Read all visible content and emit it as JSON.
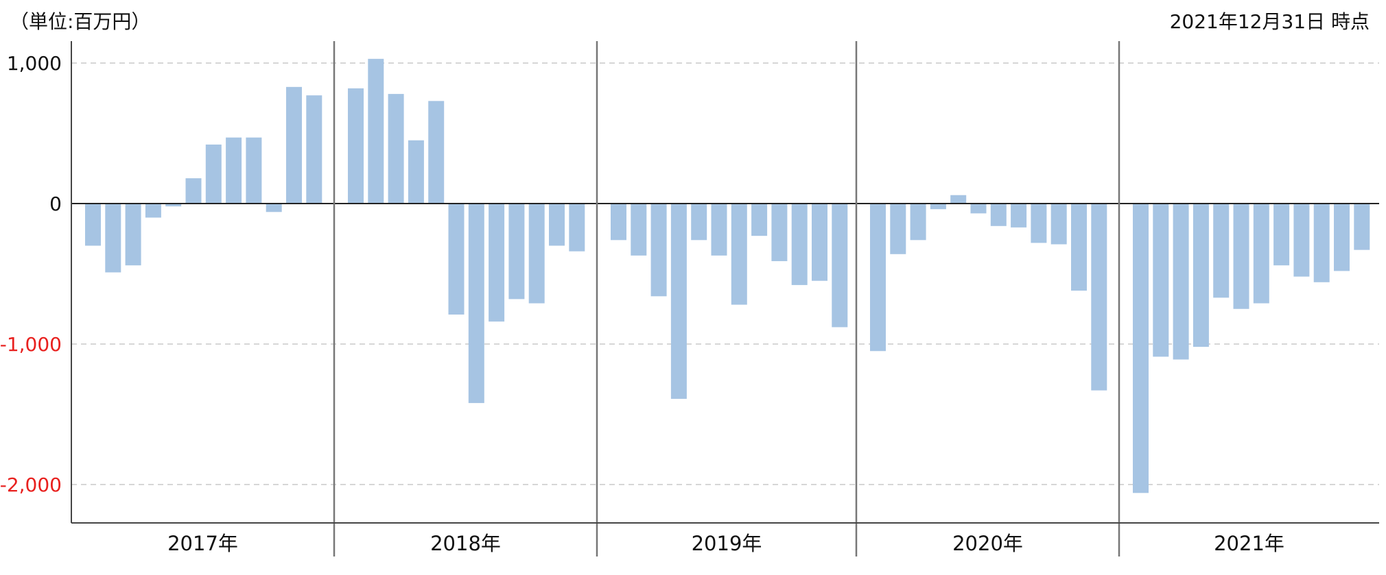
{
  "unit_label": "（単位:百万円）",
  "as_of_label": "2021年12月31日 時点",
  "chart_data": {
    "type": "bar",
    "title": "",
    "xlabel": "",
    "ylabel": "",
    "ylim": [
      -2250,
      1000
    ],
    "yticks": [
      {
        "value": 1000,
        "label": "1,000"
      },
      {
        "value": 0,
        "label": "0"
      },
      {
        "value": -1000,
        "label": "-1,000"
      },
      {
        "value": -2000,
        "label": "-2,000"
      }
    ],
    "grid": true,
    "legend": "none",
    "bar_color": "#a6c4e3",
    "negative_label_color": "#e8201e",
    "year_groups": [
      {
        "label": "2017年",
        "values": [
          -300,
          -490,
          -440,
          -100,
          -20,
          180,
          420,
          470,
          470,
          -60,
          830,
          770
        ]
      },
      {
        "label": "2018年",
        "values": [
          820,
          1030,
          780,
          450,
          730,
          -790,
          -1420,
          -840,
          -680,
          -710,
          -300,
          -340
        ]
      },
      {
        "label": "2019年",
        "values": [
          -260,
          -370,
          -660,
          -1390,
          -260,
          -370,
          -720,
          -230,
          -410,
          -580,
          -550,
          -880
        ]
      },
      {
        "label": "2020年",
        "values": [
          -1050,
          -360,
          -260,
          -40,
          60,
          -70,
          -160,
          -170,
          -280,
          -290,
          -620,
          -1330
        ]
      },
      {
        "label": "2021年",
        "values": [
          -2060,
          -1090,
          -1110,
          -1020,
          -670,
          -750,
          -710,
          -440,
          -520,
          -560,
          -480,
          -330
        ]
      }
    ]
  }
}
